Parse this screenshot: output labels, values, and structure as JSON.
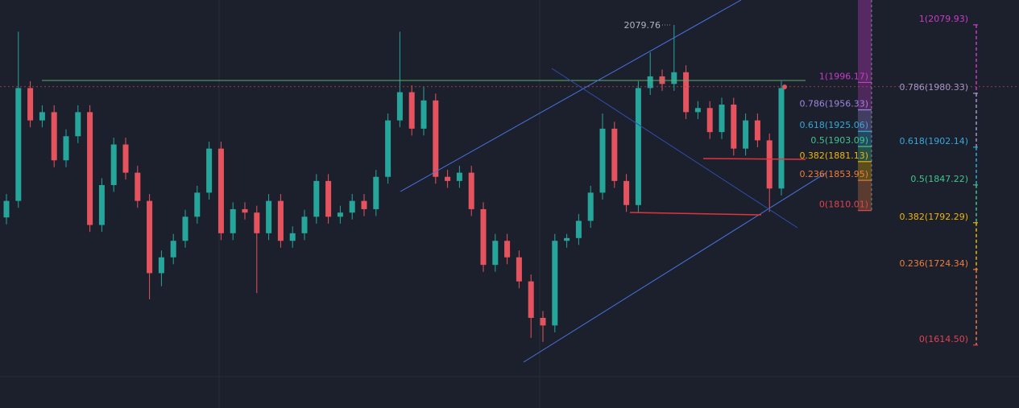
{
  "chart_data": {
    "type": "candlestick",
    "ylim": [
      1523,
      2116
    ],
    "up_color": "#26a69a",
    "down_color": "#e5535f",
    "price_line": 1990,
    "candles": [
      [
        1800,
        1834,
        1790,
        1824
      ],
      [
        1824,
        2070,
        1814,
        1988
      ],
      [
        1988,
        1998,
        1931,
        1941
      ],
      [
        1941,
        1963,
        1931,
        1953
      ],
      [
        1953,
        1963,
        1873,
        1883
      ],
      [
        1883,
        1928,
        1873,
        1918
      ],
      [
        1918,
        1963,
        1908,
        1953
      ],
      [
        1953,
        1963,
        1779,
        1789
      ],
      [
        1789,
        1857,
        1779,
        1847
      ],
      [
        1847,
        1916,
        1837,
        1906
      ],
      [
        1906,
        1916,
        1855,
        1865
      ],
      [
        1865,
        1875,
        1814,
        1824
      ],
      [
        1824,
        1834,
        1681,
        1719
      ],
      [
        1719,
        1752,
        1700,
        1742
      ],
      [
        1742,
        1776,
        1732,
        1766
      ],
      [
        1766,
        1811,
        1756,
        1801
      ],
      [
        1801,
        1846,
        1791,
        1836
      ],
      [
        1836,
        1910,
        1826,
        1900
      ],
      [
        1900,
        1910,
        1767,
        1777
      ],
      [
        1777,
        1822,
        1767,
        1812
      ],
      [
        1812,
        1822,
        1797,
        1807
      ],
      [
        1807,
        1817,
        1690,
        1777
      ],
      [
        1777,
        1834,
        1767,
        1824
      ],
      [
        1824,
        1834,
        1756,
        1766
      ],
      [
        1766,
        1787,
        1756,
        1777
      ],
      [
        1777,
        1811,
        1767,
        1801
      ],
      [
        1801,
        1863,
        1791,
        1853
      ],
      [
        1853,
        1863,
        1791,
        1801
      ],
      [
        1801,
        1817,
        1791,
        1807
      ],
      [
        1807,
        1834,
        1797,
        1824
      ],
      [
        1824,
        1834,
        1802,
        1812
      ],
      [
        1812,
        1869,
        1802,
        1859
      ],
      [
        1859,
        1951,
        1849,
        1941
      ],
      [
        1941,
        2070,
        1931,
        1982
      ],
      [
        1982,
        1992,
        1919,
        1929
      ],
      [
        1929,
        1990,
        1919,
        1970
      ],
      [
        1970,
        1980,
        1849,
        1859
      ],
      [
        1859,
        1869,
        1843,
        1853
      ],
      [
        1853,
        1875,
        1843,
        1865
      ],
      [
        1865,
        1875,
        1802,
        1812
      ],
      [
        1812,
        1822,
        1721,
        1731
      ],
      [
        1731,
        1776,
        1721,
        1766
      ],
      [
        1766,
        1776,
        1732,
        1742
      ],
      [
        1742,
        1752,
        1697,
        1707
      ],
      [
        1707,
        1717,
        1625,
        1654
      ],
      [
        1654,
        1664,
        1619,
        1643
      ],
      [
        1643,
        1776,
        1633,
        1766
      ],
      [
        1766,
        1776,
        1756,
        1770
      ],
      [
        1770,
        1805,
        1760,
        1795
      ],
      [
        1795,
        1846,
        1785,
        1836
      ],
      [
        1836,
        1951,
        1826,
        1929
      ],
      [
        1929,
        1939,
        1843,
        1853
      ],
      [
        1853,
        1863,
        1808,
        1818
      ],
      [
        1818,
        1998,
        1808,
        1988
      ],
      [
        1988,
        2040,
        1978,
        2005
      ],
      [
        2005,
        2015,
        1984,
        1994
      ],
      [
        1994,
        2079.76,
        1984,
        2011
      ],
      [
        2011,
        2021,
        1943,
        1953
      ],
      [
        1953,
        1969,
        1943,
        1959
      ],
      [
        1959,
        1969,
        1914,
        1924
      ],
      [
        1924,
        1974,
        1914,
        1964
      ],
      [
        1964,
        1974,
        1890,
        1900
      ],
      [
        1900,
        1951,
        1890,
        1941
      ],
      [
        1941,
        1951,
        1902,
        1912
      ],
      [
        1912,
        1922,
        1808,
        1842
      ],
      [
        1842,
        1998,
        1832,
        1988
      ]
    ],
    "fib_left": [
      {
        "label": "1(1996.17)",
        "price": 1996.17,
        "color": "#c93bc9"
      },
      {
        "label": "0.786(1956.33)",
        "price": 1956.33,
        "color": "#9d86e0"
      },
      {
        "label": "0.618(1925.06)",
        "price": 1925.06,
        "color": "#33a9d8"
      },
      {
        "label": "0.5(1903.09)",
        "price": 1903.09,
        "color": "#46c28c"
      },
      {
        "label": "0.382(1881.13)",
        "price": 1881.13,
        "color": "#f2b600"
      },
      {
        "label": "0.236(1853.95)",
        "price": 1853.95,
        "color": "#f07c3c"
      },
      {
        "label": "0(1810.01)",
        "price": 1810.01,
        "color": "#e3424f"
      }
    ],
    "fib_right": [
      {
        "label": "1(2079.93)",
        "price": 2079.93,
        "color": "#c93bc9"
      },
      {
        "label": "0.786(1980.33)",
        "price": 1980.33,
        "color": "#a596c8"
      },
      {
        "label": "0.618(1902.14)",
        "price": 1902.14,
        "color": "#33a9d8"
      },
      {
        "label": "0.5(1847.22)",
        "price": 1847.22,
        "color": "#46c28c"
      },
      {
        "label": "0.382(1792.29)",
        "price": 1792.29,
        "color": "#f2b600"
      },
      {
        "label": "0.236(1724.34)",
        "price": 1724.34,
        "color": "#f07c3c"
      },
      {
        "label": "0(1614.50)",
        "price": 1614.5,
        "color": "#e3424f"
      }
    ]
  }
}
